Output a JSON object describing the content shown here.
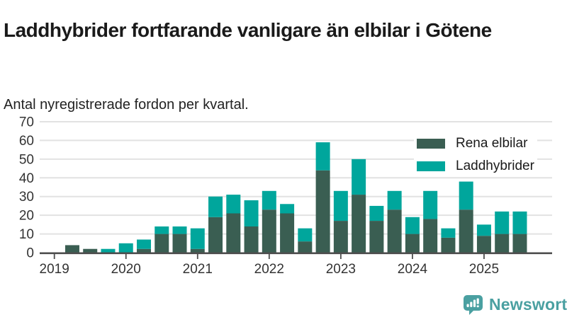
{
  "header": {
    "title": "Laddhybrider fortfarande vanligare än elbilar i Götene",
    "subtitle": "Antal nyregistrerade fordon per kvartal."
  },
  "legend": [
    {
      "label": "Rena elbilar",
      "color": "#3a5e52"
    },
    {
      "label": "Laddhybrider",
      "color": "#00a69c"
    }
  ],
  "footer": {
    "brand": "Newsworthy"
  },
  "colors": {
    "rena_elbilar": "#3a5e52",
    "laddhybrider": "#00a69c",
    "axis_line": "#4d4d4d",
    "gridline": "#e2e2e2",
    "tick_text": "#333333",
    "brand_teal": "#4aa0a1"
  },
  "chart_data": {
    "type": "bar",
    "stacked": true,
    "title": "Laddhybrider fortfarande vanligare än elbilar i Götene",
    "subtitle": "Antal nyregistrerade fordon per kvartal.",
    "xlabel": "",
    "ylabel": "",
    "ylim": [
      0,
      70
    ],
    "yticks": [
      0,
      10,
      20,
      30,
      40,
      50,
      60,
      70
    ],
    "grid": "horizontal",
    "legend_position": "top-right",
    "categories": [
      "2019 Q1",
      "2019 Q2",
      "2019 Q3",
      "2019 Q4",
      "2020 Q1",
      "2020 Q2",
      "2020 Q3",
      "2020 Q4",
      "2021 Q1",
      "2021 Q2",
      "2021 Q3",
      "2021 Q4",
      "2022 Q1",
      "2022 Q2",
      "2022 Q3",
      "2022 Q4",
      "2023 Q1",
      "2023 Q2",
      "2023 Q3",
      "2023 Q4",
      "2024 Q1",
      "2024 Q2",
      "2024 Q3",
      "2024 Q4",
      "2025 Q1",
      "2025 Q2",
      "2025 Q3"
    ],
    "x_year_labels": [
      "2019",
      "2020",
      "2021",
      "2022",
      "2023",
      "2024",
      "2025"
    ],
    "series": [
      {
        "name": "Rena elbilar",
        "color": "#3a5e52",
        "values": [
          0,
          4,
          2,
          0,
          0,
          2,
          10,
          10,
          2,
          19,
          21,
          14,
          23,
          21,
          6,
          44,
          17,
          31,
          17,
          23,
          10,
          18,
          8,
          23,
          9,
          10,
          10
        ]
      },
      {
        "name": "Laddhybrider",
        "color": "#00a69c",
        "values": [
          0,
          0,
          0,
          2,
          5,
          5,
          4,
          4,
          11,
          11,
          10,
          14,
          10,
          5,
          7,
          15,
          16,
          19,
          8,
          10,
          9,
          15,
          5,
          15,
          6,
          12,
          12
        ]
      }
    ],
    "stack_totals": [
      0,
      4,
      2,
      2,
      5,
      7,
      14,
      14,
      13,
      30,
      31,
      28,
      33,
      26,
      13,
      59,
      33,
      50,
      25,
      33,
      19,
      33,
      13,
      38,
      15,
      22,
      22
    ]
  }
}
